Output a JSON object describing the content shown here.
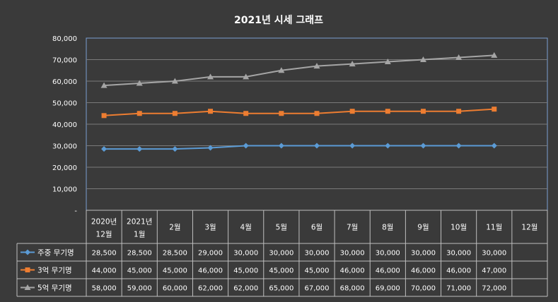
{
  "chart_data": {
    "type": "line",
    "title": "2021년 시세 그래프",
    "categories": [
      [
        "2020년",
        "12월"
      ],
      [
        "2021년",
        "1월"
      ],
      [
        "2월"
      ],
      [
        "3월"
      ],
      [
        "4월"
      ],
      [
        "5월"
      ],
      [
        "6월"
      ],
      [
        "7월"
      ],
      [
        "8월"
      ],
      [
        "9월"
      ],
      [
        "10월"
      ],
      [
        "11월"
      ],
      [
        "12월"
      ]
    ],
    "ylim": [
      0,
      80000
    ],
    "yticks": [
      {
        "value": 0,
        "label": "-"
      },
      {
        "value": 10000,
        "label": "10,000"
      },
      {
        "value": 20000,
        "label": "20,000"
      },
      {
        "value": 30000,
        "label": "30,000"
      },
      {
        "value": 40000,
        "label": "40,000"
      },
      {
        "value": 50000,
        "label": "50,000"
      },
      {
        "value": 60000,
        "label": "60,000"
      },
      {
        "value": 70000,
        "label": "70,000"
      },
      {
        "value": 80000,
        "label": "80,000"
      }
    ],
    "grid": true,
    "legend": "data-table",
    "series": [
      {
        "name": "주중 무기명",
        "color": "#5b9bd5",
        "marker": "diamond",
        "values": [
          28500,
          28500,
          28500,
          29000,
          30000,
          30000,
          30000,
          30000,
          30000,
          30000,
          30000,
          30000,
          null
        ],
        "labels": [
          "28,500",
          "28,500",
          "28,500",
          "29,000",
          "30,000",
          "30,000",
          "30,000",
          "30,000",
          "30,000",
          "30,000",
          "30,000",
          "30,000",
          ""
        ]
      },
      {
        "name": "3억 무기명",
        "color": "#ed7d31",
        "marker": "square",
        "values": [
          44000,
          45000,
          45000,
          46000,
          45000,
          45000,
          45000,
          46000,
          46000,
          46000,
          46000,
          47000,
          null
        ],
        "labels": [
          "44,000",
          "45,000",
          "45,000",
          "46,000",
          "45,000",
          "45,000",
          "45,000",
          "46,000",
          "46,000",
          "46,000",
          "46,000",
          "47,000",
          ""
        ]
      },
      {
        "name": "5억 무기명",
        "color": "#a5a5a5",
        "marker": "triangle",
        "values": [
          58000,
          59000,
          60000,
          62000,
          62000,
          65000,
          67000,
          68000,
          69000,
          70000,
          71000,
          72000,
          null
        ],
        "labels": [
          "58,000",
          "59,000",
          "60,000",
          "62,000",
          "62,000",
          "65,000",
          "67,000",
          "68,000",
          "69,000",
          "70,000",
          "71,000",
          "72,000",
          ""
        ]
      }
    ]
  }
}
